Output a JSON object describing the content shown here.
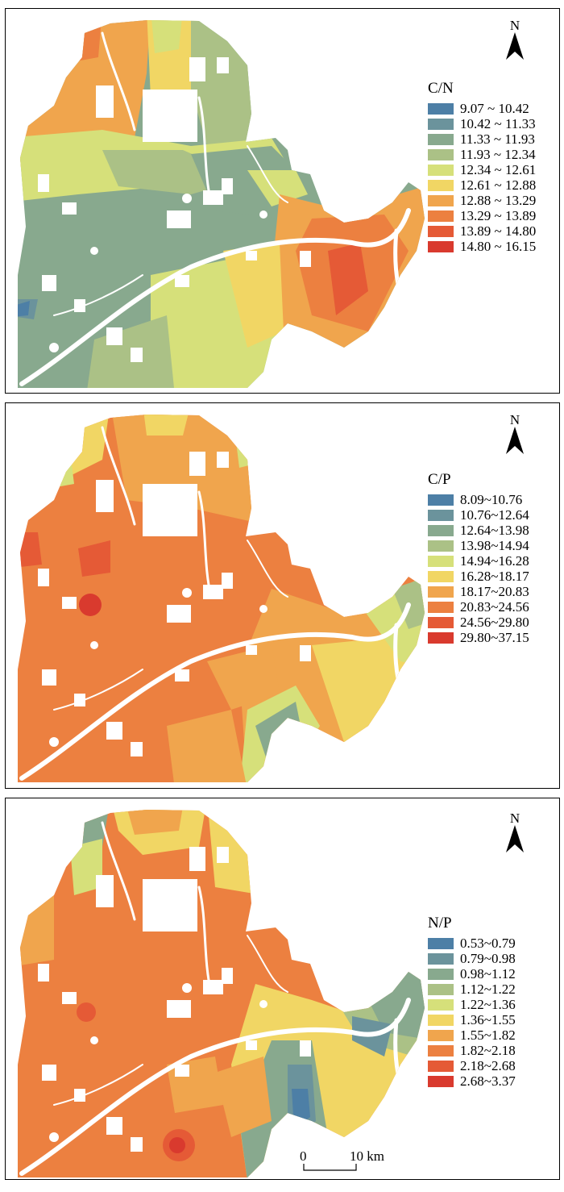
{
  "panels": [
    {
      "north_label": "N",
      "legend_title": "C/N",
      "legend": [
        {
          "label": "9.07 ~ 10.42",
          "color": "#4d7fa6"
        },
        {
          "label": "10.42 ~ 11.33",
          "color": "#6b939c"
        },
        {
          "label": "11.33 ~ 11.93",
          "color": "#88a98e"
        },
        {
          "label": "11.93 ~ 12.34",
          "color": "#abc186"
        },
        {
          "label": "12.34 ~ 12.61",
          "color": "#d6e07a"
        },
        {
          "label": "12.61 ~ 12.88",
          "color": "#f1d664"
        },
        {
          "label": "12.88 ~ 13.29",
          "color": "#f0a54d"
        },
        {
          "label": "13.29 ~ 13.89",
          "color": "#ec8040"
        },
        {
          "label": "13.89 ~ 14.80",
          "color": "#e55a36"
        },
        {
          "label": "14.80 ~ 16.15",
          "color": "#d93a2e"
        }
      ]
    },
    {
      "north_label": "N",
      "legend_title": "C/P",
      "legend": [
        {
          "label": "8.09~10.76",
          "color": "#4d7fa6"
        },
        {
          "label": "10.76~12.64",
          "color": "#6b939c"
        },
        {
          "label": "12.64~13.98",
          "color": "#88a98e"
        },
        {
          "label": "13.98~14.94",
          "color": "#abc186"
        },
        {
          "label": "14.94~16.28",
          "color": "#d6e07a"
        },
        {
          "label": "16.28~18.17",
          "color": "#f1d664"
        },
        {
          "label": "18.17~20.83",
          "color": "#f0a54d"
        },
        {
          "label": "20.83~24.56",
          "color": "#ec8040"
        },
        {
          "label": "24.56~29.80",
          "color": "#e55a36"
        },
        {
          "label": "29.80~37.15",
          "color": "#d93a2e"
        }
      ]
    },
    {
      "north_label": "N",
      "legend_title": "N/P",
      "legend": [
        {
          "label": "0.53~0.79",
          "color": "#4d7fa6"
        },
        {
          "label": "0.79~0.98",
          "color": "#6b939c"
        },
        {
          "label": "0.98~1.12",
          "color": "#88a98e"
        },
        {
          "label": "1.12~1.22",
          "color": "#abc186"
        },
        {
          "label": "1.22~1.36",
          "color": "#d6e07a"
        },
        {
          "label": "1.36~1.55",
          "color": "#f1d664"
        },
        {
          "label": "1.55~1.82",
          "color": "#f0a54d"
        },
        {
          "label": "1.82~2.18",
          "color": "#ec8040"
        },
        {
          "label": "2.18~2.68",
          "color": "#e55a36"
        },
        {
          "label": "2.68~3.37",
          "color": "#d93a2e"
        }
      ]
    }
  ],
  "scale": {
    "start_label": "0",
    "end_label": "10 km"
  }
}
